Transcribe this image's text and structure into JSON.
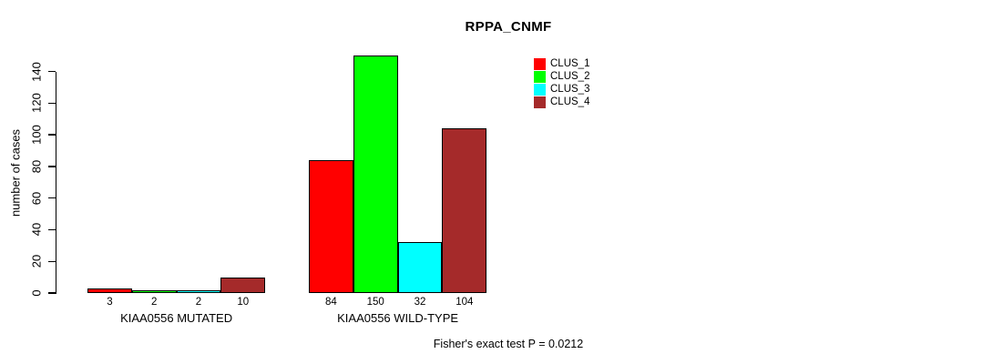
{
  "chart_data": {
    "type": "bar",
    "title": "RPPA_CNMF",
    "ylabel": "number of cases",
    "xlabel": "",
    "ylim": [
      0,
      150
    ],
    "yticks": [
      0,
      20,
      40,
      60,
      80,
      100,
      120,
      140
    ],
    "grid": false,
    "legend_position": "inside-top-right",
    "bar_border_color": "#000000",
    "categories": [
      "KIAA0556 MUTATED",
      "KIAA0556 WILD-TYPE"
    ],
    "series": [
      {
        "name": "CLUS_1",
        "color": "#ff0000",
        "values": [
          3,
          84
        ]
      },
      {
        "name": "CLUS_2",
        "color": "#00ff00",
        "values": [
          2,
          150
        ]
      },
      {
        "name": "CLUS_3",
        "color": "#00ffff",
        "values": [
          2,
          32
        ]
      },
      {
        "name": "CLUS_4",
        "color": "#a52a2a",
        "values": [
          10,
          104
        ]
      }
    ],
    "bar_value_labels_visible": true,
    "annotation": "Fisher's exact test P = 0.0212"
  }
}
